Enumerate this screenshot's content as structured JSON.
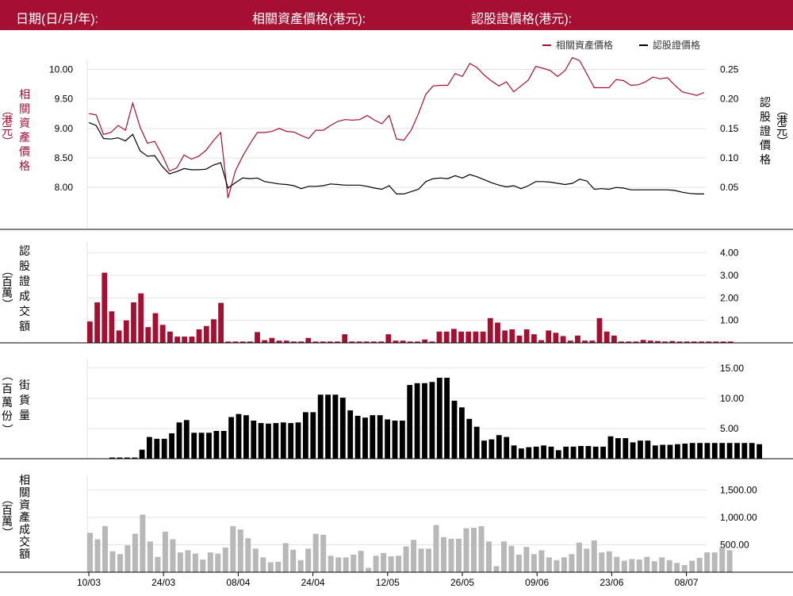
{
  "header": {
    "date_label": "日期(日/月/年):",
    "asset_price_label": "相關資產價格(港元):",
    "warrant_price_label": "認股證價格(港元):"
  },
  "colors": {
    "brand": "#a50f31",
    "warrant": "#000000",
    "asset_turnover": "#b8b8b8"
  },
  "chart_data": [
    {
      "type": "line",
      "legend_position": "top-right",
      "grid": true,
      "x_tick_labels": [
        "10/03",
        "24/03",
        "08/04",
        "24/04",
        "12/05",
        "26/05",
        "09/06",
        "23/06",
        "08/07"
      ],
      "left_axis": {
        "title": "相關資產價格",
        "unit": "（港元）",
        "ylim": [
          7.6,
          10.1
        ],
        "ticks": [
          "10.00",
          "9.50",
          "9.00",
          "8.50",
          "8.00"
        ],
        "tick_values": [
          10,
          9.5,
          9,
          8.5,
          8
        ]
      },
      "right_axis": {
        "title": "認股證價格",
        "unit": "（港元）",
        "ylim": [
          0.01,
          0.26
        ],
        "ticks": [
          "0.25",
          "0.20",
          "0.15",
          "0.10",
          "0.05"
        ],
        "tick_values": [
          0.25,
          0.2,
          0.15,
          0.1,
          0.05
        ]
      },
      "series": [
        {
          "name": "相關資產價格",
          "axis": "left",
          "color": "#a50f31",
          "values": [
            9.25,
            9.23,
            8.9,
            8.93,
            9.05,
            8.97,
            9.43,
            9.02,
            8.75,
            8.78,
            8.55,
            8.28,
            8.33,
            8.55,
            8.48,
            8.53,
            8.63,
            8.79,
            8.93,
            7.82,
            8.28,
            8.53,
            8.74,
            8.93,
            8.93,
            8.95,
            9.0,
            8.95,
            8.94,
            8.88,
            8.83,
            8.97,
            8.97,
            9.05,
            9.12,
            9.15,
            9.14,
            9.15,
            9.22,
            9.14,
            9.08,
            9.22,
            8.82,
            8.8,
            8.97,
            9.25,
            9.58,
            9.72,
            9.73,
            9.73,
            9.93,
            9.88,
            10.1,
            10.03,
            9.9,
            9.8,
            9.72,
            9.79,
            9.62,
            9.72,
            9.82,
            10.05,
            10.02,
            9.98,
            9.88,
            9.98,
            10.2,
            10.15,
            9.92,
            9.69,
            9.69,
            9.69,
            9.83,
            9.81,
            9.73,
            9.74,
            9.79,
            9.87,
            9.84,
            9.86,
            9.73,
            9.62,
            9.59,
            9.56,
            9.61
          ]
        },
        {
          "name": "認股證價格",
          "axis": "right",
          "color": "#000000",
          "values": [
            0.16,
            0.155,
            0.133,
            0.132,
            0.134,
            0.129,
            0.14,
            0.112,
            0.103,
            0.104,
            0.086,
            0.073,
            0.077,
            0.082,
            0.08,
            0.08,
            0.081,
            0.088,
            0.092,
            0.049,
            0.058,
            0.066,
            0.065,
            0.066,
            0.06,
            0.058,
            0.056,
            0.055,
            0.053,
            0.048,
            0.052,
            0.052,
            0.053,
            0.056,
            0.055,
            0.054,
            0.054,
            0.054,
            0.052,
            0.049,
            0.047,
            0.053,
            0.039,
            0.039,
            0.043,
            0.047,
            0.06,
            0.065,
            0.066,
            0.065,
            0.07,
            0.066,
            0.072,
            0.068,
            0.063,
            0.058,
            0.054,
            0.051,
            0.053,
            0.048,
            0.053,
            0.06,
            0.06,
            0.059,
            0.057,
            0.055,
            0.057,
            0.064,
            0.061,
            0.047,
            0.048,
            0.047,
            0.05,
            0.049,
            0.046,
            0.046,
            0.046,
            0.046,
            0.046,
            0.046,
            0.045,
            0.042,
            0.04,
            0.039,
            0.039
          ]
        }
      ]
    },
    {
      "type": "bar",
      "title": "認股證成交額",
      "unit": "（百萬）",
      "color": "#a50f31",
      "ylim": [
        0,
        4.2
      ],
      "ticks": [
        "4.00",
        "3.00",
        "2.00",
        "1.00"
      ],
      "tick_values": [
        4,
        3,
        2,
        1
      ],
      "values": [
        0.95,
        1.8,
        3.12,
        1.4,
        0.55,
        1.0,
        1.8,
        2.2,
        0.7,
        1.32,
        0.8,
        0.5,
        0.28,
        0.28,
        0.28,
        0.6,
        0.75,
        1.05,
        1.78,
        0.06,
        0.06,
        0.06,
        0.06,
        0.48,
        0.12,
        0.22,
        0.1,
        0.1,
        0.06,
        0.06,
        0.22,
        0.06,
        0.06,
        0.06,
        0.06,
        0.38,
        0.06,
        0.06,
        0.06,
        0.06,
        0.06,
        0.38,
        0.1,
        0.1,
        0.06,
        0.06,
        0.15,
        0.06,
        0.5,
        0.5,
        0.62,
        0.5,
        0.5,
        0.5,
        0.5,
        1.1,
        0.9,
        0.55,
        0.6,
        0.32,
        0.6,
        0.38,
        0.12,
        0.55,
        0.45,
        0.3,
        0.1,
        0.32,
        0.1,
        0.1,
        1.1,
        0.5,
        0.32,
        0.06,
        0.06,
        0.06,
        0.13,
        0.1,
        0.08,
        0.06,
        0.08,
        0.06,
        0.06,
        0.06,
        0.06,
        0.06,
        0.06,
        0.06,
        0.06
      ]
    },
    {
      "type": "bar",
      "title": "街貨量",
      "unit": "（百萬份）",
      "color": "#000000",
      "ylim": [
        0,
        15.5
      ],
      "ticks": [
        "15.00",
        "10.00",
        "5.00"
      ],
      "tick_values": [
        15,
        10,
        5
      ],
      "values": [
        0,
        0,
        0,
        0.2,
        0.2,
        0.2,
        0.2,
        1.5,
        3.6,
        3.3,
        3.3,
        4.2,
        6.0,
        6.4,
        4.3,
        4.3,
        4.3,
        4.6,
        4.6,
        6.9,
        7.4,
        7.2,
        6.3,
        5.9,
        5.8,
        5.9,
        6.0,
        5.9,
        6.0,
        7.7,
        7.7,
        10.6,
        10.6,
        10.6,
        10.1,
        8.0,
        7.1,
        6.8,
        7.2,
        7.2,
        6.5,
        6.3,
        6.3,
        12.2,
        12.5,
        12.5,
        12.7,
        13.4,
        13.4,
        9.6,
        8.5,
        6.6,
        5.3,
        3.0,
        3.2,
        3.9,
        3.6,
        2.2,
        1.7,
        1.9,
        2.0,
        2.2,
        2.0,
        1.4,
        2.0,
        2.0,
        2.1,
        2.1,
        2.0,
        2.0,
        3.7,
        3.4,
        3.4,
        2.7,
        3.0,
        3.0,
        2.2,
        2.3,
        2.3,
        2.4,
        2.5,
        2.6,
        2.6,
        2.6,
        2.6,
        2.6,
        2.6,
        2.6,
        2.6,
        2.6,
        2.4
      ]
    },
    {
      "type": "bar",
      "title": "相關資產成交額",
      "unit": "（百萬）",
      "color": "#b8b8b8",
      "ylim": [
        0,
        1650
      ],
      "ticks": [
        "1,500.00",
        "1,000.00",
        "500.00"
      ],
      "tick_values": [
        1500,
        1000,
        500
      ],
      "values": [
        720,
        600,
        840,
        380,
        330,
        490,
        700,
        1050,
        560,
        280,
        740,
        600,
        360,
        400,
        340,
        230,
        360,
        340,
        450,
        840,
        780,
        620,
        430,
        270,
        180,
        190,
        530,
        410,
        220,
        430,
        700,
        680,
        300,
        270,
        270,
        320,
        390,
        80,
        300,
        350,
        290,
        300,
        470,
        590,
        430,
        430,
        860,
        640,
        610,
        610,
        800,
        810,
        840,
        560,
        110,
        560,
        480,
        320,
        460,
        330,
        400,
        270,
        220,
        270,
        330,
        540,
        430,
        580,
        360,
        380,
        280,
        210,
        240,
        230,
        280,
        200,
        270,
        220,
        170,
        130,
        210,
        260,
        360,
        360,
        450,
        400
      ]
    }
  ]
}
